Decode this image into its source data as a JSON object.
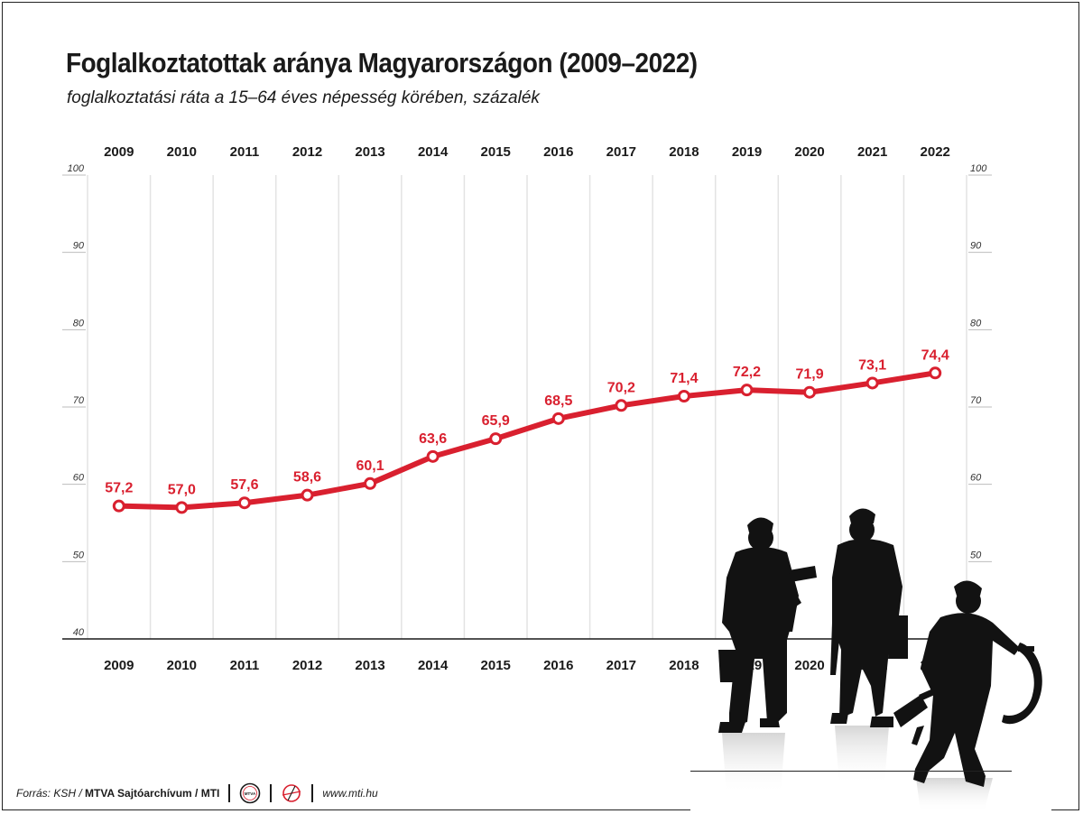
{
  "title": "Foglalkoztatottak aránya Magyarországon (2009–2022)",
  "subtitle": "foglalkoztatási ráta a 15–64 éves népesség körében, százalék",
  "colors": {
    "line": "#d9202f",
    "grid": "#e3e3e3",
    "text": "#1a1a1a",
    "silhouette": "#121212"
  },
  "chart_data": {
    "type": "line",
    "categories": [
      "2009",
      "2010",
      "2011",
      "2012",
      "2013",
      "2014",
      "2015",
      "2016",
      "2017",
      "2018",
      "2019",
      "2020",
      "2021",
      "2022"
    ],
    "series": [
      {
        "values": [
          57.2,
          57.0,
          57.6,
          58.6,
          60.1,
          63.6,
          65.9,
          68.5,
          70.2,
          71.4,
          72.2,
          71.9,
          73.1,
          74.4
        ]
      }
    ],
    "data_labels": [
      "57,2",
      "57,0",
      "57,6",
      "58,6",
      "60,1",
      "63,6",
      "65,9",
      "68,5",
      "70,2",
      "71,4",
      "72,2",
      "71,9",
      "73,1",
      "74,4"
    ],
    "ylim": [
      40,
      100
    ],
    "yticks": [
      "40",
      "50",
      "60",
      "70",
      "80",
      "90",
      "100"
    ],
    "y_axis_both_sides": true,
    "x_labels_top_and_bottom": true,
    "grid": true,
    "xlabel": "",
    "ylabel": ""
  },
  "footer": {
    "source_prefix": "Forrás: KSH / ",
    "source_bold": "MTVA Sajtóarchívum / MTI",
    "logo1_text": "MTVA",
    "website": "www.mti.hu"
  },
  "illustration": "worker-silhouettes"
}
